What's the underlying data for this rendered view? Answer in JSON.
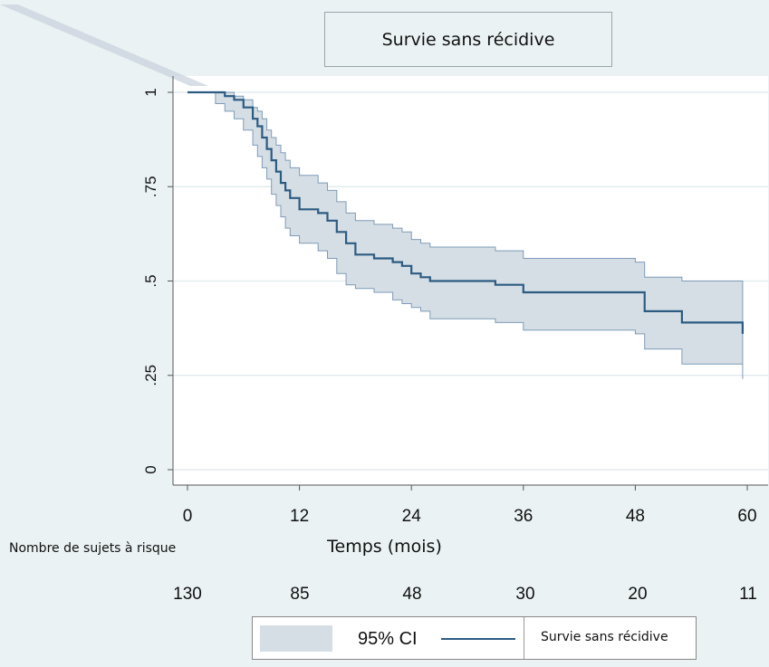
{
  "title": "Survie sans récidive",
  "chart_data": {
    "type": "line",
    "title": "Survie sans récidive",
    "xlabel": "Temps (mois)",
    "ylabel": "",
    "xlim": [
      0,
      60
    ],
    "ylim": [
      0,
      1
    ],
    "x_ticks": [
      "0",
      "12",
      "24",
      "36",
      "48",
      "60"
    ],
    "y_ticks": [
      "0",
      ".25",
      ".5",
      ".75",
      "1"
    ],
    "grid": true,
    "series": [
      {
        "name": "Survie sans récidive",
        "color": "#2c5b82",
        "x": [
          0,
          3,
          4,
          5,
          6,
          7,
          7.5,
          8,
          8.5,
          9,
          9.5,
          10,
          10.5,
          11,
          12,
          14,
          15,
          16,
          17,
          18,
          20,
          22,
          23,
          24,
          25,
          26,
          33,
          36,
          48,
          49,
          53,
          59.5
        ],
        "y": [
          1.0,
          1.0,
          0.99,
          0.98,
          0.96,
          0.93,
          0.91,
          0.88,
          0.85,
          0.82,
          0.79,
          0.76,
          0.74,
          0.72,
          0.69,
          0.68,
          0.66,
          0.63,
          0.6,
          0.57,
          0.56,
          0.55,
          0.54,
          0.52,
          0.51,
          0.5,
          0.49,
          0.47,
          0.47,
          0.42,
          0.39,
          0.36
        ]
      },
      {
        "name": "95% CI",
        "color": "#d6dee5",
        "x": [
          0,
          3,
          4,
          5,
          6,
          7,
          7.5,
          8,
          8.5,
          9,
          9.5,
          10,
          10.5,
          11,
          12,
          14,
          15,
          16,
          17,
          18,
          20,
          22,
          23,
          24,
          25,
          26,
          33,
          36,
          48,
          49,
          53,
          59.5
        ],
        "lower": [
          1.0,
          0.97,
          0.95,
          0.93,
          0.9,
          0.86,
          0.83,
          0.8,
          0.77,
          0.73,
          0.7,
          0.67,
          0.64,
          0.62,
          0.6,
          0.58,
          0.56,
          0.52,
          0.49,
          0.48,
          0.47,
          0.45,
          0.44,
          0.43,
          0.42,
          0.4,
          0.39,
          0.37,
          0.36,
          0.32,
          0.28,
          0.24
        ],
        "upper": [
          1.0,
          1.0,
          1.0,
          0.99,
          0.98,
          0.96,
          0.95,
          0.93,
          0.9,
          0.88,
          0.86,
          0.84,
          0.82,
          0.8,
          0.78,
          0.76,
          0.74,
          0.71,
          0.68,
          0.66,
          0.65,
          0.64,
          0.63,
          0.61,
          0.6,
          0.59,
          0.58,
          0.56,
          0.55,
          0.51,
          0.5,
          0.49
        ]
      }
    ],
    "risk_table": {
      "label": "Nombre de sujets à risque",
      "times": [
        0,
        12,
        24,
        36,
        48,
        60
      ],
      "values": [
        "130",
        "85",
        "48",
        "30",
        "20",
        "11"
      ]
    },
    "legend": {
      "position": "bottom",
      "entries": [
        "95% CI",
        "Survie sans récidive"
      ]
    }
  }
}
